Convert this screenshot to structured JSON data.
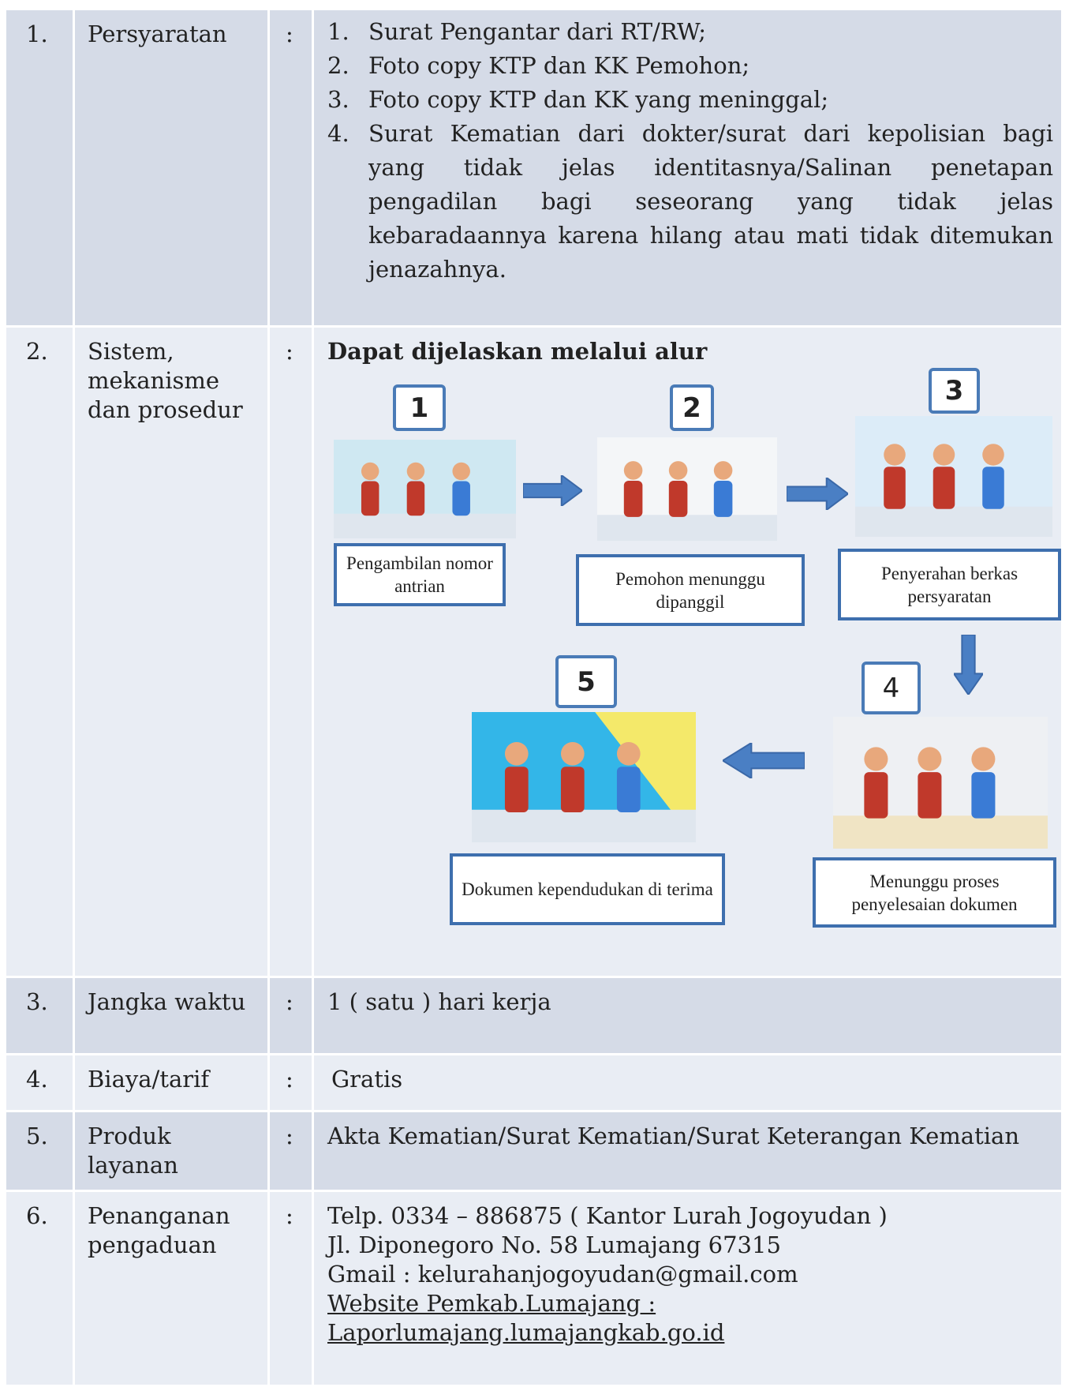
{
  "rows": [
    {
      "number": "1.",
      "label": "Persyaratan",
      "separator": ":",
      "items": [
        {
          "marker": "1.",
          "text": "Surat Pengantar dari RT/RW;"
        },
        {
          "marker": "2.",
          "text": "Foto copy KTP dan KK Pemohon;"
        },
        {
          "marker": "3.",
          "text": "Foto copy KTP dan KK yang meninggal;"
        },
        {
          "marker": "4.",
          "text": "Surat Kematian dari dokter/surat dari kepolisian bagi yang tidak jelas identitasnya/Salinan penetapan pengadilan bagi seseorang yang tidak jelas kebaradaannya karena hilang atau mati tidak ditemukan jenazahnya."
        }
      ]
    },
    {
      "number": "2.",
      "label": "Sistem, mekanisme dan prosedur",
      "separator": ":",
      "heading": "Dapat dijelaskan melalui alur",
      "steps": [
        {
          "number": "1",
          "caption": "Pengambilan nomor antrian"
        },
        {
          "number": "2",
          "caption": "Pemohon menunggu dipanggil"
        },
        {
          "number": "3",
          "caption": "Penyerahan berkas persyaratan"
        },
        {
          "number": "4",
          "caption": "Menunggu proses penyelesaian dokumen"
        },
        {
          "number": "5",
          "caption": "Dokumen kependudukan di terima"
        }
      ]
    },
    {
      "number": "3.",
      "label": "Jangka waktu",
      "separator": ":",
      "text": "1 ( satu ) hari kerja"
    },
    {
      "number": "4.",
      "label": "Biaya/tarif",
      "separator": ":",
      "text": "Gratis"
    },
    {
      "number": "5.",
      "label": "Produk layanan",
      "separator": ":",
      "text": "Akta Kematian/Surat Kematian/Surat Keterangan Kematian"
    },
    {
      "number": "6.",
      "label": "Penanganan pengaduan",
      "separator": ":",
      "lines": [
        "Telp. 0334 – 886875 ( Kantor Lurah Jogoyudan )",
        "Jl. Diponegoro No. 58 Lumajang 67315",
        "Gmail : kelurahanjogoyudan@gmail.com",
        "Website Pemkab.Lumajang :",
        "Laporlumajang.lumajangkab.go.id"
      ]
    }
  ]
}
